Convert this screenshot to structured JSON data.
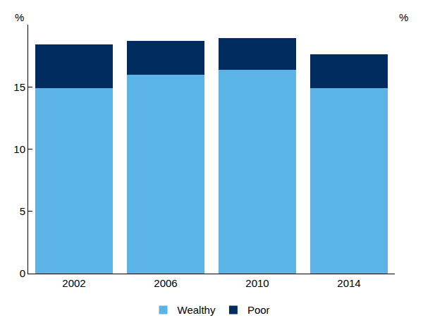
{
  "chart_data": {
    "type": "bar",
    "stacked": true,
    "categories": [
      "2002",
      "2006",
      "2010",
      "2014"
    ],
    "series": [
      {
        "name": "Wealthy",
        "color": "#5bb4e5",
        "values": [
          14.9,
          16.0,
          16.4,
          14.9
        ]
      },
      {
        "name": "Poor",
        "color": "#002c5f",
        "values": [
          3.5,
          2.7,
          2.5,
          2.7
        ]
      }
    ],
    "ylabel": "%",
    "ylim": [
      0,
      20
    ],
    "yticks": [
      0,
      5,
      10,
      15
    ],
    "grid": false,
    "legend": "bottom"
  }
}
